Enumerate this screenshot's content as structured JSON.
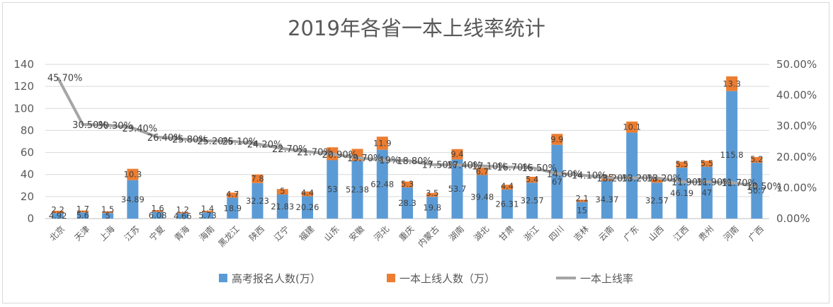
{
  "chart_data": {
    "type": "bar",
    "title": "2019年各省一本上线率统计",
    "categories": [
      "北京",
      "天津",
      "上海",
      "江苏",
      "宁夏",
      "青海",
      "海南",
      "黑龙江",
      "陕西",
      "辽宁",
      "福建",
      "山东",
      "安徽",
      "河北",
      "重庆",
      "内蒙古",
      "湖南",
      "湖北",
      "甘肃",
      "浙江",
      "四川",
      "吉林",
      "云南",
      "广东",
      "山西",
      "江西",
      "贵州",
      "河南",
      "广西"
    ],
    "series": [
      {
        "name": "高考报名人数(万）",
        "axis": "left",
        "color": "#5b9bd5",
        "values": [
          4.92,
          5.6,
          5,
          34.89,
          6.08,
          4.66,
          5.73,
          18.9,
          32.23,
          21.83,
          20.26,
          53,
          52.38,
          62.48,
          28.3,
          19.8,
          53.7,
          39.48,
          26.31,
          32.57,
          67,
          15,
          34.37,
          78,
          32.57,
          46.19,
          47,
          115.8,
          50.7
        ],
        "labels": [
          "4.92",
          "5.6",
          "5",
          "34.89",
          "6.08",
          "4.66",
          "5.73",
          "18.9",
          "32.23",
          "21.83",
          "20.26",
          "53",
          "52.38",
          "62.48",
          "28.3",
          "19.8",
          "53.7",
          "39.48",
          "26.31",
          "32.57",
          "67",
          "15",
          "34.37",
          "",
          "32.57",
          "46.19",
          "47",
          "115.8",
          "50.7"
        ]
      },
      {
        "name": "一本上线人数（万）",
        "axis": "left",
        "color": "#ed7d31",
        "values": [
          2.2,
          1.7,
          1.5,
          10.3,
          1.6,
          1.2,
          1.4,
          4.7,
          7.8,
          5,
          4.4,
          11.7,
          10.9,
          11.9,
          5.3,
          3.5,
          9.4,
          6.7,
          4.4,
          5.4,
          9.9,
          2.1,
          4.5,
          10.1,
          5,
          5.5,
          5.5,
          13.3,
          5.2
        ],
        "labels": [
          "2.2",
          "1.7",
          "1.5",
          "10.3",
          "1.6",
          "1.2",
          "1.4",
          "4.7",
          "7.8",
          "5",
          "4.4",
          "",
          "",
          "11.9",
          "5.3",
          "3.5",
          "9.4",
          "6.7",
          "4.4",
          "5.4",
          "9.9",
          "2.1",
          "4.5",
          "10.1",
          "",
          "5.5",
          "5.5",
          "13.3",
          "5.2"
        ]
      },
      {
        "name": "一本上线率",
        "axis": "right",
        "color": "#a5a5a5",
        "type": "line",
        "values": [
          45.7,
          30.5,
          30.3,
          29.4,
          26.4,
          25.8,
          25.2,
          25.1,
          24.2,
          22.7,
          21.7,
          20.9,
          19.7,
          19,
          18.8,
          17.5,
          17.4,
          17.1,
          16.7,
          16.5,
          14.6,
          14.1,
          13.2,
          13.2,
          13.2,
          11.9,
          11.9,
          11.7,
          10.5
        ],
        "labels": [
          "45.70%",
          "30.50%",
          "30.30%",
          "29.40%",
          "26.40%",
          "25.80%",
          "25.20%",
          "25.10%",
          "24.20%",
          "22.70%",
          "21.70%",
          "20.90%",
          "19.70%",
          "19%",
          "18.80%",
          "17.50%",
          "17.40%",
          "17.10%",
          "16.70%",
          "16.50%",
          "14.60%",
          "14.10%",
          "13.20%",
          "13.20%",
          "13.20%",
          "11.90%",
          "11.90%",
          "11.70%",
          "10.50%"
        ]
      }
    ],
    "y_left": {
      "min": 0,
      "max": 140,
      "ticks": [
        "0",
        "20",
        "40",
        "60",
        "80",
        "100",
        "120",
        "140"
      ]
    },
    "y_right": {
      "min": 0,
      "max": 50,
      "ticks": [
        "0.00%",
        "10.00%",
        "20.00%",
        "30.00%",
        "40.00%",
        "50.00%"
      ]
    },
    "grid": true,
    "legend_position": "bottom",
    "legend": [
      "高考报名人数(万）",
      "一本上线人数（万）",
      "一本上线率"
    ]
  }
}
